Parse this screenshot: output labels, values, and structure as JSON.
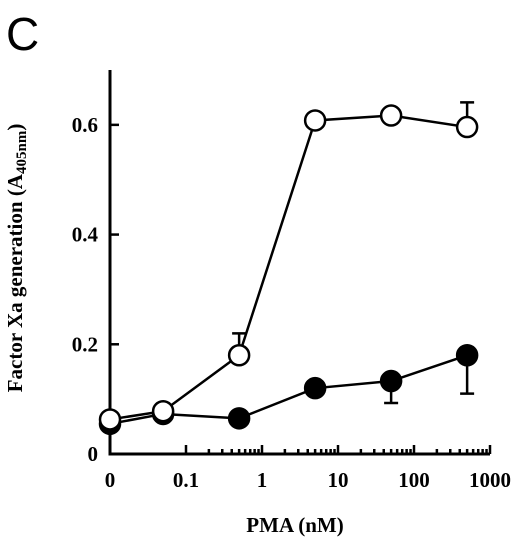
{
  "panel_label": "C",
  "chart_data": {
    "type": "line",
    "xlabel": "PMA (nM)",
    "ylabel_main": "Factor Xa generation (A",
    "ylabel_sub": "405nm",
    "ylabel_end": ")",
    "x_categories": [
      "0",
      "0.1",
      "1",
      "10",
      "100",
      "1000"
    ],
    "x_scale": "log",
    "y_ticks": [
      "0",
      "0.2",
      "0.4",
      "0.6"
    ],
    "y_tick_values": [
      0,
      0.2,
      0.4,
      0.6
    ],
    "ylim": [
      0,
      0.7
    ],
    "series": [
      {
        "style": "open-circle",
        "points": [
          {
            "x": 0,
            "y": 0.063
          },
          {
            "x": 0.05,
            "y": 0.078
          },
          {
            "x": 0.5,
            "y": 0.18,
            "err": 0.04,
            "err_dir": "up"
          },
          {
            "x": 5,
            "y": 0.608
          },
          {
            "x": 50,
            "y": 0.617
          },
          {
            "x": 500,
            "y": 0.596,
            "err": 0.045,
            "err_dir": "up"
          }
        ]
      },
      {
        "style": "filled-circle",
        "points": [
          {
            "x": 0,
            "y": 0.055
          },
          {
            "x": 0.05,
            "y": 0.073
          },
          {
            "x": 0.5,
            "y": 0.065
          },
          {
            "x": 5,
            "y": 0.12
          },
          {
            "x": 50,
            "y": 0.133,
            "err": 0.04,
            "err_dir": "down"
          },
          {
            "x": 500,
            "y": 0.18,
            "err": 0.07,
            "err_dir": "down"
          }
        ]
      }
    ]
  }
}
